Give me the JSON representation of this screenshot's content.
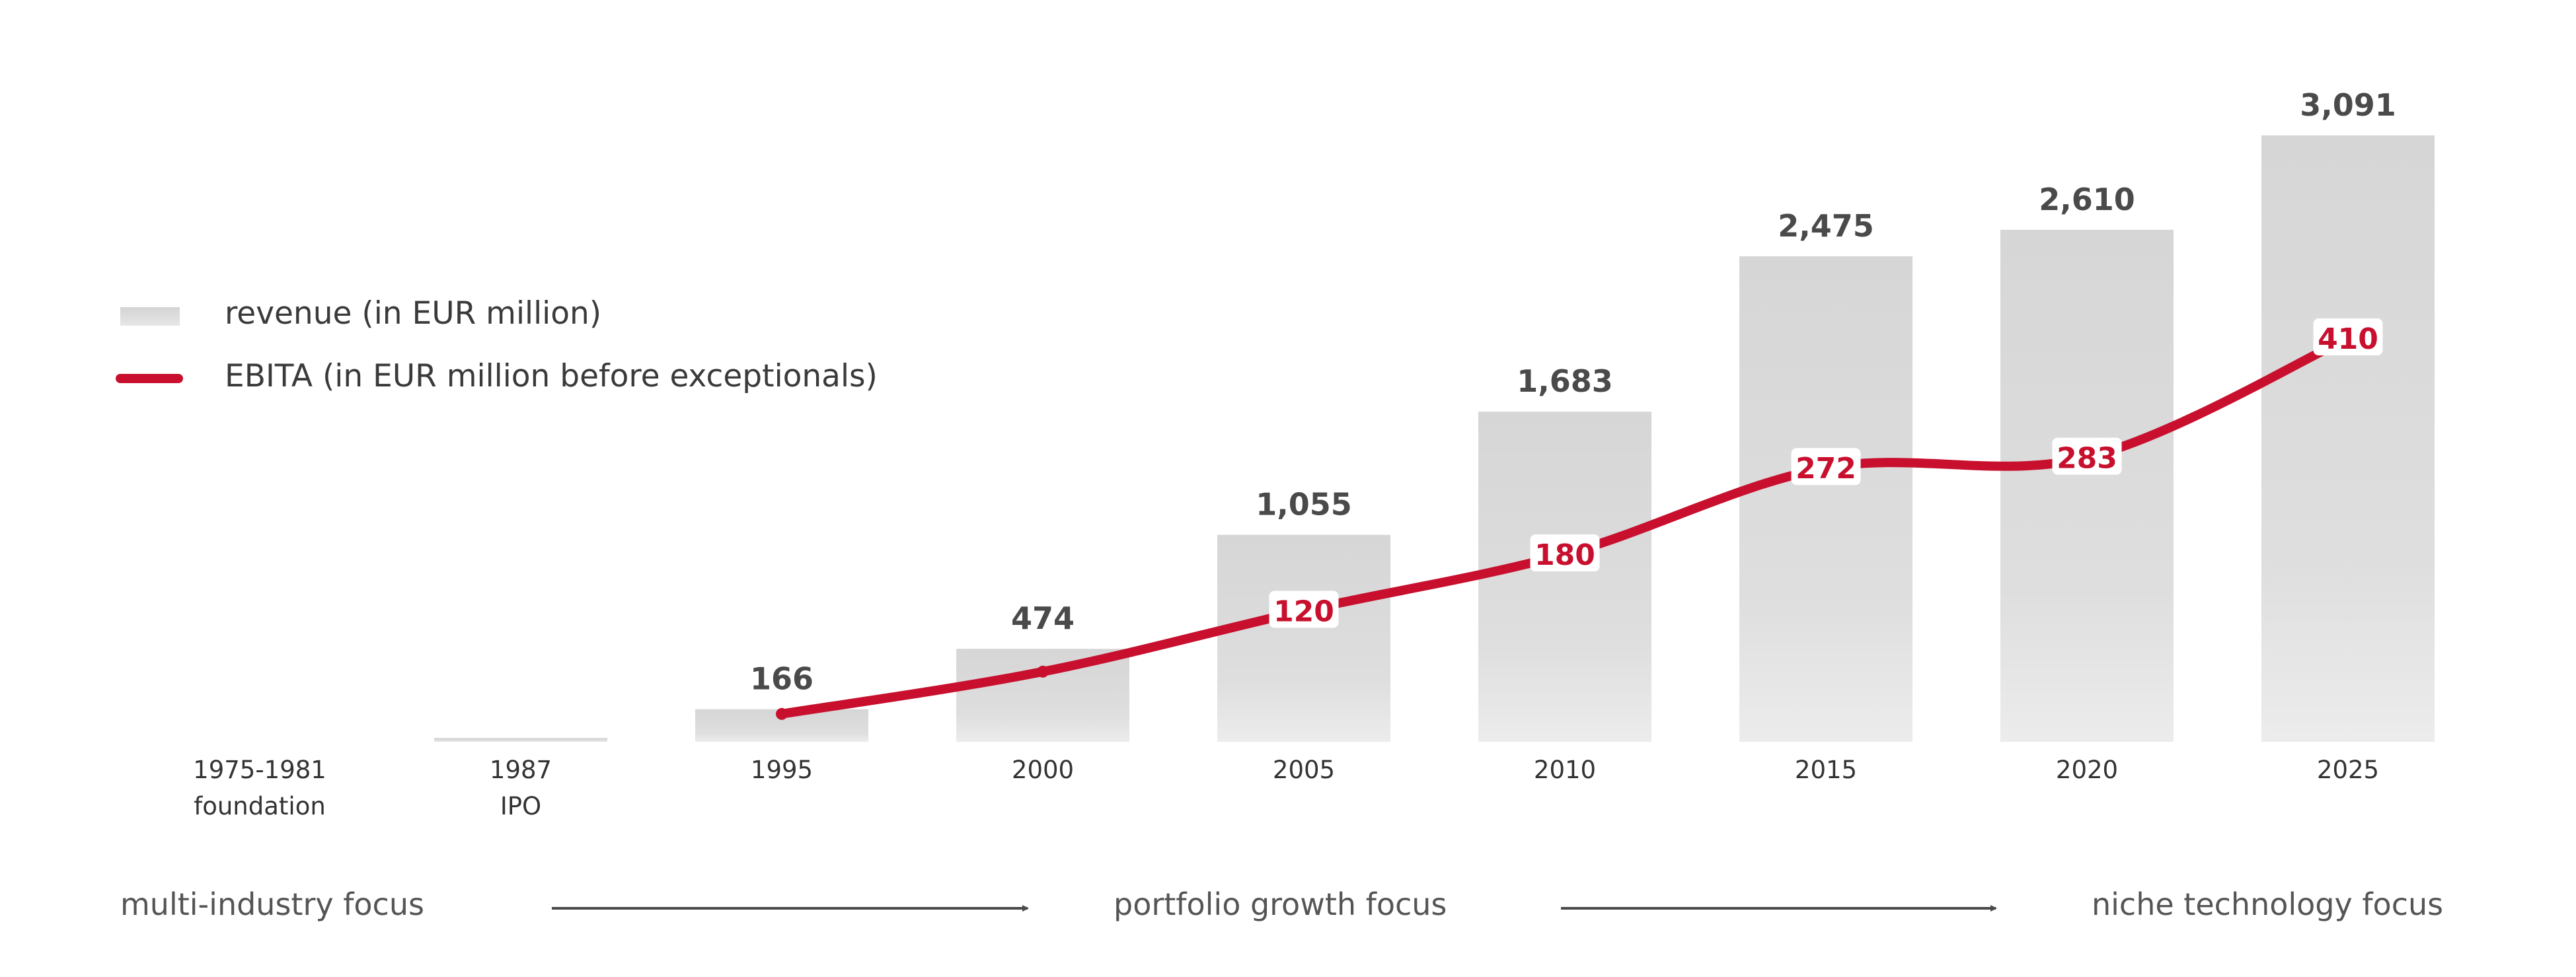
{
  "colors": {
    "bar": "#d6d6d6",
    "bar_light": "#ececec",
    "ebita": "#c8102e",
    "arrow": "#4a4a4a"
  },
  "legend": {
    "revenue": "revenue (in EUR million)",
    "ebita": "EBITA (in EUR million before exceptionals)"
  },
  "chart_data": {
    "type": "bar",
    "title": "",
    "categories": [
      "1975-1981",
      "1987",
      "1995",
      "2000",
      "2005",
      "2010",
      "2015",
      "2020",
      "2025"
    ],
    "category_sublabels": [
      "foundation",
      "IPO",
      "",
      "",
      "",
      "",
      "",
      "",
      ""
    ],
    "series": [
      {
        "name": "revenue (in EUR million)",
        "type": "bar",
        "values": [
          0,
          15,
          166,
          474,
          1055,
          1683,
          2475,
          2610,
          3091
        ],
        "labels": [
          "",
          "",
          "166",
          "474",
          "1,055",
          "1,683",
          "2,475",
          "2,610",
          "3,091"
        ]
      },
      {
        "name": "EBITA (in EUR million before exceptionals)",
        "type": "line",
        "values": [
          null,
          null,
          10,
          55,
          120,
          180,
          272,
          283,
          410
        ],
        "labels": [
          "",
          "",
          "",
          "",
          "120",
          "180",
          "272",
          "283",
          "410"
        ]
      }
    ],
    "ylim": [
      0,
      3200
    ],
    "ebita_ylim": [
      0,
      520
    ],
    "xlabel": "",
    "ylabel": "",
    "grid": false,
    "legend": "left"
  },
  "focus": {
    "phases": [
      "multi-industry focus",
      "portfolio growth focus",
      "niche technology focus"
    ]
  }
}
